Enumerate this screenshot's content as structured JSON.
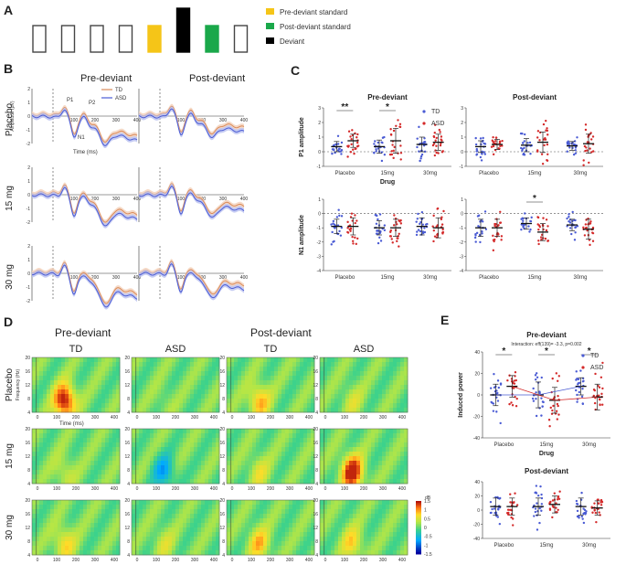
{
  "panels": {
    "A": {
      "label": "A",
      "sequence": [
        "std",
        "std",
        "std",
        "std",
        "pre",
        "dev",
        "post",
        "std"
      ],
      "legend": [
        {
          "name": "Pre-deviant standard",
          "color": "#f5c518"
        },
        {
          "name": "Post-deviant standard",
          "color": "#1aa84a"
        },
        {
          "name": "Deviant",
          "color": "#000000"
        }
      ]
    },
    "B": {
      "label": "B",
      "col_titles": [
        "Pre-deviant",
        "Post-deviant"
      ],
      "row_labels": [
        "Placebo",
        "15 mg",
        "30 mg"
      ],
      "legend": [
        "TD",
        "ASD"
      ],
      "peak_labels": [
        "P1",
        "P2",
        "N1"
      ],
      "ylabel": "Amplitude (µV)",
      "xlabel": "Time (ms)",
      "xticks": [
        "100",
        "200",
        "300",
        "400"
      ],
      "yticks": [
        "2",
        "1",
        "0",
        "-1",
        "-2"
      ]
    },
    "D": {
      "label": "D",
      "group_titles": [
        "Pre-deviant",
        "Post-deviant"
      ],
      "col_titles": [
        "TD",
        "ASD",
        "TD",
        "ASD"
      ],
      "row_labels": [
        "Placebo",
        "15 mg",
        "30 mg"
      ],
      "ylabel": "Frequency (Hz)",
      "xlabel": "Time (ms)",
      "yticks": [
        "20",
        "16",
        "12",
        "8",
        "4"
      ],
      "xticks": [
        "0",
        "100",
        "200",
        "300",
        "400"
      ],
      "colorbar": {
        "unit": "dB",
        "ticks": [
          "1.5",
          "1",
          "0.5",
          "0",
          "-0.5",
          "-1",
          "-1.5"
        ]
      }
    }
  },
  "chart_data": [
    {
      "id": "C-P1-pre",
      "type": "scatter",
      "panel": "C",
      "title": "Pre-deviant",
      "ylabel": "P1 amplitude",
      "xlabel": "Drug",
      "ylim": [
        -1,
        3
      ],
      "yticks": [
        "3",
        "2",
        "1",
        "0",
        "-1"
      ],
      "categories": [
        "Placebo",
        "15mg",
        "30mg"
      ],
      "legend": [
        "TD",
        "ASD"
      ],
      "series": [
        {
          "name": "TD",
          "color": "#4a5bd4",
          "means": [
            0.35,
            0.35,
            0.5
          ],
          "sd": [
            0.35,
            0.45,
            0.5
          ],
          "n": 26
        },
        {
          "name": "ASD",
          "color": "#d42a2a",
          "means": [
            0.75,
            0.75,
            0.65
          ],
          "sd": [
            0.45,
            0.85,
            0.55
          ],
          "n": 26
        }
      ],
      "annotations": [
        {
          "text": "**",
          "category": "Placebo"
        },
        {
          "text": "*",
          "category": "15mg"
        }
      ]
    },
    {
      "id": "C-P1-post",
      "type": "scatter",
      "panel": "C",
      "title": "Post-deviant",
      "ylabel": "",
      "xlabel": "",
      "ylim": [
        -1,
        3
      ],
      "yticks": [
        "3",
        "2",
        "1",
        "0",
        "-1"
      ],
      "categories": [
        "Placebo",
        "15mg",
        "30mg"
      ],
      "series": [
        {
          "name": "TD",
          "color": "#4a5bd4",
          "means": [
            0.35,
            0.45,
            0.4
          ],
          "sd": [
            0.4,
            0.45,
            0.3
          ],
          "n": 26
        },
        {
          "name": "ASD",
          "color": "#d42a2a",
          "means": [
            0.5,
            0.65,
            0.55
          ],
          "sd": [
            0.35,
            0.7,
            0.65
          ],
          "n": 26
        }
      ],
      "annotations": []
    },
    {
      "id": "C-N1-pre",
      "type": "scatter",
      "panel": "C",
      "title": "",
      "ylabel": "N1 amplitude",
      "xlabel": "",
      "ylim": [
        -4,
        1
      ],
      "yticks": [
        "1",
        "0",
        "-1",
        "-2",
        "-3",
        "-4"
      ],
      "categories": [
        "Placebo",
        "15mg",
        "30mg"
      ],
      "series": [
        {
          "name": "TD",
          "color": "#4a5bd4",
          "means": [
            -0.9,
            -1.0,
            -0.9
          ],
          "sd": [
            0.5,
            0.5,
            0.6
          ],
          "n": 26
        },
        {
          "name": "ASD",
          "color": "#d42a2a",
          "means": [
            -0.9,
            -1.0,
            -1.0
          ],
          "sd": [
            0.6,
            0.6,
            0.7
          ],
          "n": 26
        }
      ],
      "annotations": []
    },
    {
      "id": "C-N1-post",
      "type": "scatter",
      "panel": "C",
      "title": "",
      "ylabel": "",
      "xlabel": "",
      "ylim": [
        -4,
        1
      ],
      "yticks": [
        "1",
        "0",
        "-1",
        "-2",
        "-3",
        "-4"
      ],
      "categories": [
        "Placebo",
        "15mg",
        "30mg"
      ],
      "series": [
        {
          "name": "TD",
          "color": "#4a5bd4",
          "means": [
            -1.0,
            -0.7,
            -0.8
          ],
          "sd": [
            0.6,
            0.4,
            0.4
          ],
          "n": 26
        },
        {
          "name": "ASD",
          "color": "#d42a2a",
          "means": [
            -1.0,
            -1.3,
            -1.1
          ],
          "sd": [
            0.6,
            0.6,
            0.7
          ],
          "n": 26
        }
      ],
      "annotations": [
        {
          "text": "*",
          "category": "15mg"
        }
      ]
    },
    {
      "id": "E-pre",
      "type": "scatter",
      "panel": "E",
      "title": "Pre-deviant",
      "subtitle": "Interaction: eff(139)= -3.3, p=0.002",
      "ylabel": "Induced power",
      "xlabel": "Drug",
      "ylim": [
        -40,
        40
      ],
      "yticks": [
        "40",
        "20",
        "0",
        "-20",
        "-40"
      ],
      "categories": [
        "Placebo",
        "15mg",
        "30mg"
      ],
      "legend": [
        "TD",
        "ASD"
      ],
      "series": [
        {
          "name": "TD",
          "color": "#4a5bd4",
          "means": [
            0,
            0,
            8
          ],
          "sd": [
            10,
            12,
            8
          ],
          "n": 26
        },
        {
          "name": "ASD",
          "color": "#d42a2a",
          "means": [
            8,
            -5,
            -2
          ],
          "sd": [
            10,
            12,
            12
          ],
          "n": 26
        }
      ],
      "annotations": [
        {
          "text": "*",
          "category": "Placebo"
        },
        {
          "text": "*",
          "category": "15mg"
        },
        {
          "text": "*",
          "category": "30mg"
        }
      ]
    },
    {
      "id": "E-post",
      "type": "scatter",
      "panel": "E",
      "title": "Post-deviant",
      "ylabel": "",
      "xlabel": "",
      "ylim": [
        -40,
        40
      ],
      "yticks": [
        "40",
        "20",
        "0",
        "-20",
        "-40"
      ],
      "categories": [
        "Placebo",
        "15mg",
        "30mg"
      ],
      "series": [
        {
          "name": "TD",
          "color": "#4a5bd4",
          "means": [
            5,
            5,
            5
          ],
          "sd": [
            12,
            12,
            12
          ],
          "n": 26
        },
        {
          "name": "ASD",
          "color": "#d42a2a",
          "means": [
            5,
            8,
            3
          ],
          "sd": [
            12,
            12,
            10
          ],
          "n": 26
        }
      ],
      "annotations": []
    }
  ]
}
